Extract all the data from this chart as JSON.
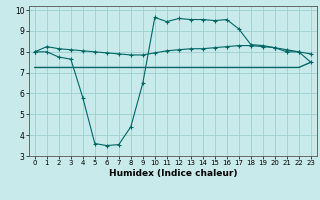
{
  "xlabel": "Humidex (Indice chaleur)",
  "bg_color": "#c8eaea",
  "grid_color": "#9dcfcf",
  "line_color": "#006666",
  "xlim": [
    -0.5,
    23.5
  ],
  "ylim": [
    3,
    10.2
  ],
  "xticks": [
    0,
    1,
    2,
    3,
    4,
    5,
    6,
    7,
    8,
    9,
    10,
    11,
    12,
    13,
    14,
    15,
    16,
    17,
    18,
    19,
    20,
    21,
    22,
    23
  ],
  "yticks": [
    3,
    4,
    5,
    6,
    7,
    8,
    9,
    10
  ],
  "line1_x": [
    0,
    1,
    2,
    3,
    4,
    5,
    6,
    7,
    8,
    9,
    10,
    11,
    12,
    13,
    14,
    15,
    16,
    17,
    18,
    19,
    20,
    21,
    22,
    23
  ],
  "line1_y": [
    8.0,
    8.25,
    8.15,
    8.1,
    8.05,
    8.0,
    7.95,
    7.9,
    7.85,
    7.85,
    7.95,
    8.05,
    8.1,
    8.15,
    8.15,
    8.2,
    8.25,
    8.3,
    8.3,
    8.25,
    8.2,
    8.1,
    8.0,
    7.9
  ],
  "line2_x": [
    0,
    1,
    2,
    3,
    4,
    5,
    6,
    7,
    8,
    9,
    10,
    11,
    12,
    13,
    14,
    15,
    16,
    17,
    18,
    19,
    20,
    21,
    22,
    23
  ],
  "line2_y": [
    8.0,
    8.0,
    7.75,
    7.65,
    5.8,
    3.6,
    3.5,
    3.55,
    4.4,
    6.5,
    9.65,
    9.45,
    9.6,
    9.55,
    9.55,
    9.5,
    9.55,
    9.1,
    8.35,
    8.3,
    8.2,
    8.0,
    8.0,
    7.5
  ],
  "line3_x": [
    0,
    1,
    2,
    3,
    4,
    5,
    6,
    7,
    8,
    9,
    10,
    11,
    12,
    13,
    14,
    15,
    16,
    17,
    18,
    19,
    20,
    21,
    22,
    23
  ],
  "line3_y": [
    7.25,
    7.25,
    7.25,
    7.25,
    7.25,
    7.25,
    7.25,
    7.25,
    7.25,
    7.25,
    7.25,
    7.25,
    7.25,
    7.25,
    7.25,
    7.25,
    7.25,
    7.25,
    7.25,
    7.25,
    7.25,
    7.25,
    7.25,
    7.5
  ]
}
